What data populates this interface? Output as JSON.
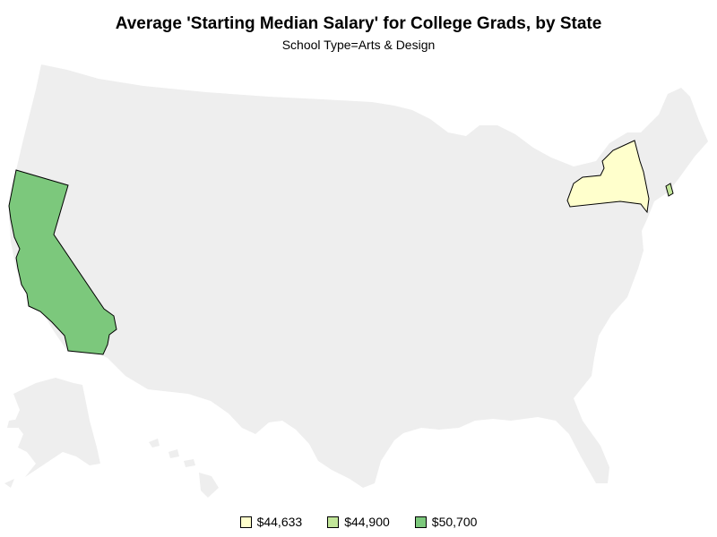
{
  "title": "Average 'Starting Median Salary' for College Grads, by State",
  "subtitle": "School Type=Arts & Design",
  "map": {
    "base_color": "#eeeeee",
    "outline_color": "#000000",
    "states": [
      {
        "name": "California",
        "value": "$50,700",
        "color": "#7cc87c"
      },
      {
        "name": "New York",
        "value": "$44,633",
        "color": "#ffffcc"
      },
      {
        "name": "Rhode Island",
        "value": "$44,900",
        "color": "#c2e699"
      }
    ]
  },
  "legend": [
    {
      "label": "$44,633",
      "color": "#ffffcc"
    },
    {
      "label": "$44,900",
      "color": "#c2e699"
    },
    {
      "label": "$50,700",
      "color": "#7cc87c"
    }
  ]
}
